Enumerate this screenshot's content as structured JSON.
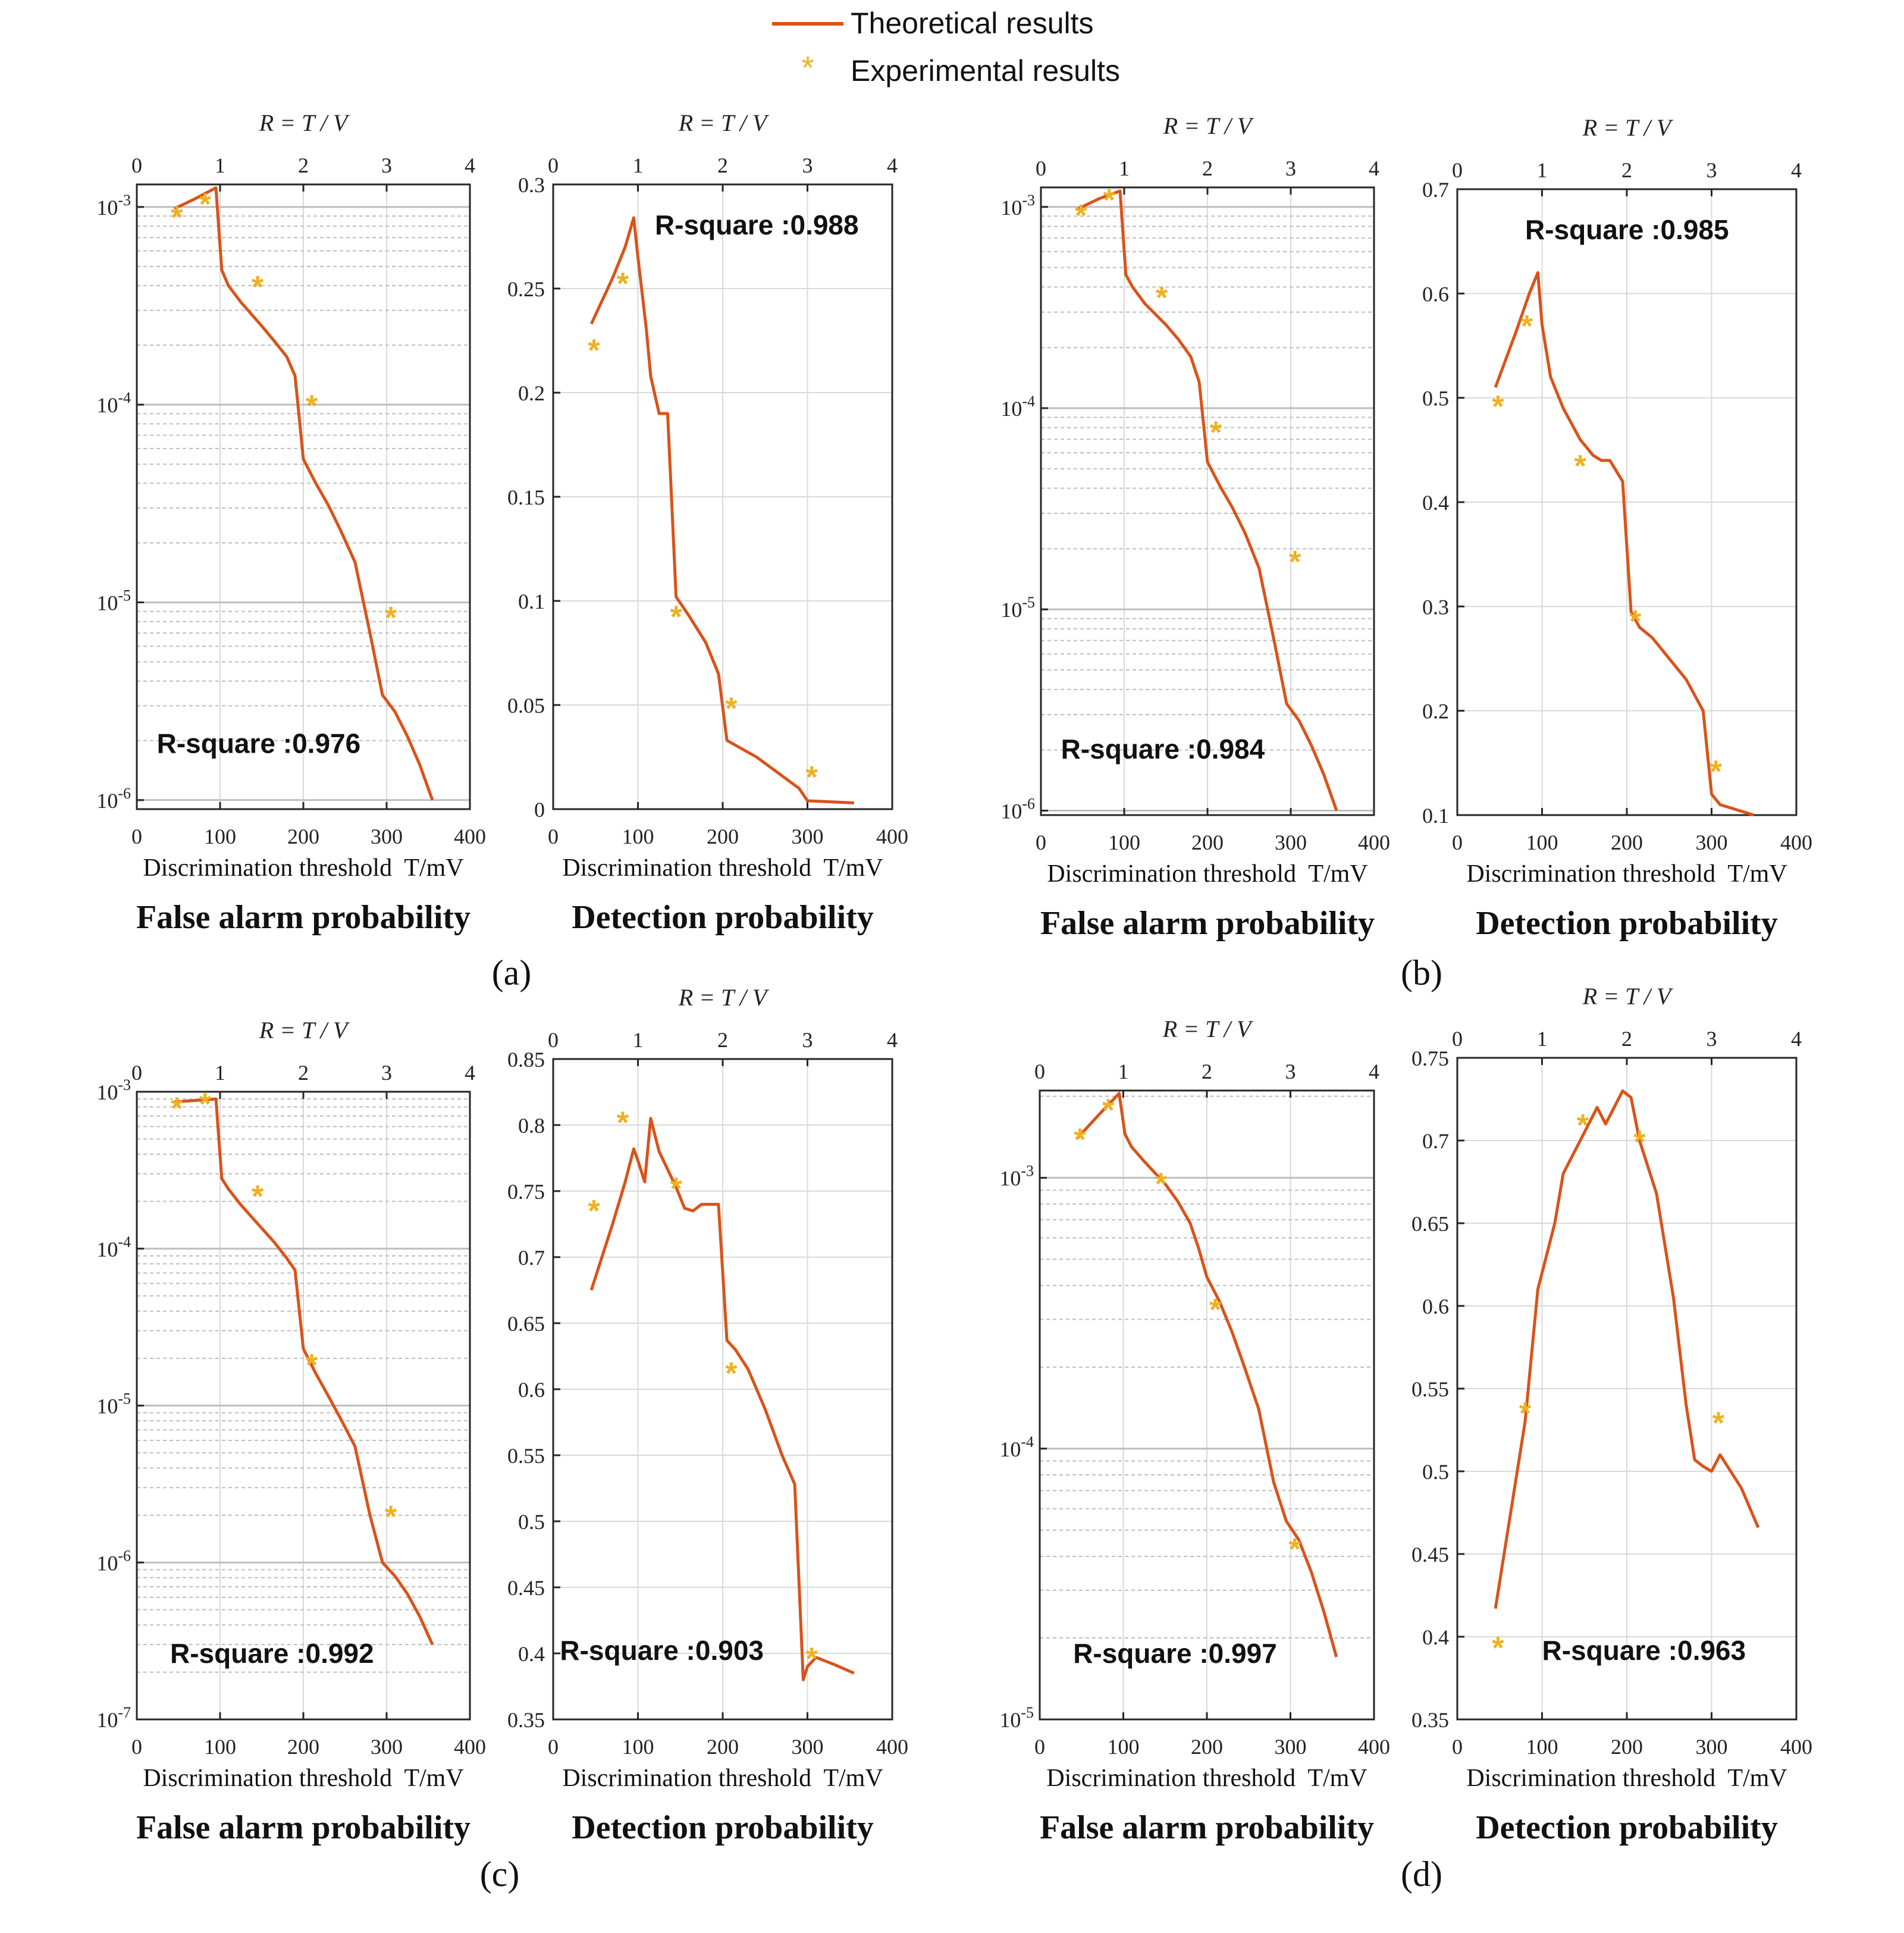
{
  "colors": {
    "theory": "#d95319",
    "experiment": "#edb120",
    "grid_major": "#d9d9d9",
    "grid_minor": "#bdbdbd",
    "axis": "#262626"
  },
  "legend": {
    "theory_label": "Theoretical results",
    "experiment_label": "Experimental results",
    "position": "top-center"
  },
  "chart_data": [
    {
      "type": "line",
      "panel": "(a)",
      "side": "left",
      "title": "False alarm probability",
      "xlabel": "Discrimination threshold  T/mV",
      "top_xlabel": "R = T / V",
      "yscale": "log",
      "ylim": [
        9e-07,
        0.0013
      ],
      "xlim": [
        0,
        400
      ],
      "top_xlim": [
        0,
        4
      ],
      "xticks": [
        0,
        100,
        200,
        300,
        400
      ],
      "top_xticks": [
        0,
        1,
        2,
        3,
        4
      ],
      "yticks": [
        1e-06,
        1e-05,
        0.0001,
        0.001
      ],
      "yticklabels": [
        "10",
        "10",
        "10",
        "10"
      ],
      "ytickexp": [
        "-6",
        "-5",
        "-4",
        "-3"
      ],
      "r_square": "R-square :0.976",
      "rsq_pos": [
        0.06,
        0.09
      ],
      "grid": true,
      "theory": {
        "name": "Theoretical results",
        "x": [
          45,
          70,
          95,
          102,
          110,
          125,
          150,
          165,
          180,
          190,
          200,
          215,
          230,
          245,
          262,
          280,
          295,
          310,
          325,
          340,
          355
        ],
        "y": [
          0.00098,
          0.0011,
          0.00125,
          0.00048,
          0.0004,
          0.00033,
          0.00025,
          0.00021,
          0.000175,
          0.00014,
          5.3e-05,
          4e-05,
          3.1e-05,
          2.3e-05,
          1.6e-05,
          7e-06,
          3.4e-06,
          2.8e-06,
          2.1e-06,
          1.5e-06,
          1e-06
        ]
      },
      "experiment": {
        "name": "Experimental results",
        "x": [
          48,
          82,
          145,
          210,
          305
        ],
        "y": [
          0.0009,
          0.00105,
          0.0004,
          0.0001,
          8.5e-06
        ]
      }
    },
    {
      "type": "line",
      "panel": "(a)",
      "side": "right",
      "title": "Detection probability",
      "xlabel": "Discrimination threshold  T/mV",
      "top_xlabel": "R = T / V",
      "yscale": "linear",
      "ylim": [
        0,
        0.3
      ],
      "xlim": [
        0,
        400
      ],
      "top_xlim": [
        0,
        4
      ],
      "xticks": [
        0,
        100,
        200,
        300,
        400
      ],
      "top_xticks": [
        0,
        1,
        2,
        3,
        4
      ],
      "yticks": [
        0,
        0.05,
        0.1,
        0.15,
        0.2,
        0.25,
        0.3
      ],
      "yticklabels": [
        "0",
        "0.05",
        "0.1",
        "0.15",
        "0.2",
        "0.25",
        "0.3"
      ],
      "r_square": "R-square :0.988",
      "rsq_pos": [
        0.3,
        0.92
      ],
      "grid": true,
      "theory": {
        "name": "Theoretical results",
        "x": [
          45,
          70,
          85,
          95,
          100,
          110,
          115,
          125,
          135,
          145,
          160,
          180,
          195,
          205,
          240,
          270,
          290,
          300,
          355
        ],
        "y": [
          0.233,
          0.255,
          0.27,
          0.284,
          0.265,
          0.23,
          0.208,
          0.19,
          0.19,
          0.102,
          0.093,
          0.08,
          0.065,
          0.033,
          0.025,
          0.016,
          0.01,
          0.004,
          0.003
        ]
      },
      "experiment": {
        "name": "Experimental results",
        "x": [
          48,
          82,
          145,
          210,
          305
        ],
        "y": [
          0.221,
          0.253,
          0.093,
          0.049,
          0.016
        ]
      }
    },
    {
      "type": "line",
      "panel": "(b)",
      "side": "left",
      "title": "False alarm probability",
      "xlabel": "Discrimination threshold  T/mV",
      "top_xlabel": "R = T / V",
      "yscale": "log",
      "ylim": [
        9.5e-07,
        0.00125
      ],
      "xlim": [
        0,
        400
      ],
      "top_xlim": [
        0,
        4
      ],
      "xticks": [
        0,
        100,
        200,
        300,
        400
      ],
      "top_xticks": [
        0,
        1,
        2,
        3,
        4
      ],
      "yticks": [
        1e-06,
        1e-05,
        0.0001,
        0.001
      ],
      "yticklabels": [
        "10",
        "10",
        "10",
        "10"
      ],
      "ytickexp": [
        "-6",
        "-5",
        "-4",
        "-3"
      ],
      "r_square": "R-square :0.984",
      "rsq_pos": [
        0.06,
        0.09
      ],
      "grid": true,
      "theory": {
        "name": "Theoretical results",
        "x": [
          45,
          70,
          95,
          102,
          110,
          125,
          150,
          165,
          180,
          190,
          200,
          215,
          230,
          245,
          262,
          280,
          295,
          310,
          325,
          340,
          355
        ],
        "y": [
          0.00098,
          0.0011,
          0.0012,
          0.00046,
          0.0004,
          0.00033,
          0.00026,
          0.00022,
          0.00018,
          0.000135,
          5.4e-05,
          4.1e-05,
          3.2e-05,
          2.4e-05,
          1.6e-05,
          7e-06,
          3.4e-06,
          2.8e-06,
          2.1e-06,
          1.5e-06,
          1e-06
        ]
      },
      "experiment": {
        "name": "Experimental results",
        "x": [
          48,
          82,
          145,
          210,
          305
        ],
        "y": [
          0.00092,
          0.0011,
          0.00036,
          7.7e-05,
          1.75e-05
        ]
      }
    },
    {
      "type": "line",
      "panel": "(b)",
      "side": "right",
      "title": "Detection probability",
      "xlabel": "Discrimination threshold  T/mV",
      "top_xlabel": "R = T / V",
      "yscale": "linear",
      "ylim": [
        0.1,
        0.7
      ],
      "xlim": [
        0,
        400
      ],
      "top_xlim": [
        0,
        4
      ],
      "xticks": [
        0,
        100,
        200,
        300,
        400
      ],
      "top_xticks": [
        0,
        1,
        2,
        3,
        4
      ],
      "yticks": [
        0.1,
        0.2,
        0.3,
        0.4,
        0.5,
        0.6,
        0.7
      ],
      "yticklabels": [
        "0.1",
        "0.2",
        "0.3",
        "0.4",
        "0.5",
        "0.6",
        "0.7"
      ],
      "r_square": "R-square :0.985",
      "rsq_pos": [
        0.2,
        0.92
      ],
      "grid": true,
      "theory": {
        "name": "Theoretical results",
        "x": [
          45,
          70,
          85,
          95,
          100,
          110,
          125,
          145,
          160,
          170,
          180,
          195,
          205,
          215,
          230,
          250,
          270,
          290,
          300,
          310,
          350
        ],
        "y": [
          0.51,
          0.565,
          0.6,
          0.62,
          0.57,
          0.52,
          0.49,
          0.46,
          0.445,
          0.44,
          0.44,
          0.42,
          0.295,
          0.28,
          0.27,
          0.25,
          0.23,
          0.2,
          0.12,
          0.11,
          0.1
        ]
      },
      "experiment": {
        "name": "Experimental results",
        "x": [
          48,
          82,
          145,
          210,
          305
        ],
        "y": [
          0.493,
          0.57,
          0.436,
          0.287,
          0.143
        ]
      }
    },
    {
      "type": "line",
      "panel": "(c)",
      "side": "left",
      "title": "False alarm probability",
      "xlabel": "Discrimination threshold  T/mV",
      "top_xlabel": "R = T / V",
      "yscale": "log",
      "ylim": [
        1e-07,
        0.001
      ],
      "xlim": [
        0,
        400
      ],
      "top_xlim": [
        0,
        4
      ],
      "xticks": [
        0,
        100,
        200,
        300,
        400
      ],
      "top_xticks": [
        0,
        1,
        2,
        3,
        4
      ],
      "yticks": [
        1e-07,
        1e-06,
        1e-05,
        0.0001,
        0.001
      ],
      "yticklabels": [
        "10",
        "10",
        "10",
        "10",
        "10"
      ],
      "ytickexp": [
        "-7",
        "-6",
        "-5",
        "-4",
        "-3"
      ],
      "r_square": "R-square :0.992",
      "rsq_pos": [
        0.1,
        0.09
      ],
      "grid": true,
      "theory": {
        "name": "Theoretical results",
        "x": [
          45,
          70,
          95,
          102,
          110,
          125,
          150,
          165,
          180,
          190,
          200,
          215,
          230,
          245,
          262,
          280,
          295,
          310,
          325,
          340,
          355
        ],
        "y": [
          0.00086,
          0.00088,
          0.0009,
          0.00028,
          0.00024,
          0.00019,
          0.000135,
          0.00011,
          8.7e-05,
          7.3e-05,
          2.3e-05,
          1.6e-05,
          1.15e-05,
          8.2e-06,
          5.5e-06,
          2e-06,
          1e-06,
          8.2e-07,
          6.3e-07,
          4.5e-07,
          3e-07
        ]
      },
      "experiment": {
        "name": "Experimental results",
        "x": [
          48,
          82,
          145,
          210,
          305
        ],
        "y": [
          0.0008,
          0.00085,
          0.00022,
          1.85e-05,
          2e-06
        ]
      }
    },
    {
      "type": "line",
      "panel": "(c)",
      "side": "right",
      "title": "Detection probability",
      "xlabel": "Discrimination threshold  T/mV",
      "top_xlabel": "R = T / V",
      "yscale": "linear",
      "ylim": [
        0.35,
        0.85
      ],
      "xlim": [
        0,
        400
      ],
      "top_xlim": [
        0,
        4
      ],
      "xticks": [
        0,
        100,
        200,
        300,
        400
      ],
      "top_xticks": [
        0,
        1,
        2,
        3,
        4
      ],
      "yticks": [
        0.35,
        0.4,
        0.45,
        0.5,
        0.55,
        0.6,
        0.65,
        0.7,
        0.75,
        0.8,
        0.85
      ],
      "yticklabels": [
        "0.35",
        "0.4",
        "0.45",
        "0.5",
        "0.55",
        "0.6",
        "0.65",
        "0.7",
        "0.75",
        "0.8",
        "0.85"
      ],
      "r_square": "R-square :0.903",
      "rsq_pos": [
        0.02,
        0.09
      ],
      "grid": true,
      "theory": {
        "name": "Theoretical results",
        "x": [
          45,
          70,
          85,
          95,
          100,
          108,
          115,
          125,
          145,
          155,
          165,
          175,
          195,
          205,
          215,
          230,
          250,
          270,
          285,
          295,
          300,
          310,
          330,
          355
        ],
        "y": [
          0.675,
          0.725,
          0.757,
          0.782,
          0.773,
          0.757,
          0.805,
          0.78,
          0.753,
          0.737,
          0.735,
          0.74,
          0.74,
          0.637,
          0.63,
          0.615,
          0.585,
          0.55,
          0.528,
          0.38,
          0.39,
          0.397,
          0.392,
          0.385
        ]
      },
      "experiment": {
        "name": "Experimental results",
        "x": [
          48,
          82,
          145,
          210,
          305
        ],
        "y": [
          0.736,
          0.803,
          0.753,
          0.613,
          0.397
        ]
      }
    },
    {
      "type": "line",
      "panel": "(d)",
      "side": "left",
      "title": "False alarm probability",
      "xlabel": "Discrimination threshold  T/mV",
      "top_xlabel": "R = T / V",
      "yscale": "log",
      "ylim": [
        1e-05,
        0.0021
      ],
      "xlim": [
        0,
        400
      ],
      "top_xlim": [
        0,
        4
      ],
      "xticks": [
        0,
        100,
        200,
        300,
        400
      ],
      "top_xticks": [
        0,
        1,
        2,
        3,
        4
      ],
      "yticks": [
        1e-05,
        0.0001,
        0.001
      ],
      "yticklabels": [
        "10",
        "10",
        "10"
      ],
      "ytickexp": [
        "-5",
        "-4",
        "-3"
      ],
      "r_square": "R-square :0.997",
      "rsq_pos": [
        0.1,
        0.09
      ],
      "grid": true,
      "theory": {
        "name": "Theoretical results",
        "x": [
          45,
          70,
          95,
          102,
          110,
          125,
          150,
          165,
          180,
          190,
          200,
          215,
          230,
          245,
          262,
          280,
          295,
          310,
          325,
          340,
          355
        ],
        "y": [
          0.0014,
          0.0017,
          0.00205,
          0.00145,
          0.0013,
          0.00115,
          0.00095,
          0.00082,
          0.00068,
          0.00055,
          0.00043,
          0.00035,
          0.00027,
          0.0002,
          0.00014,
          7.5e-05,
          5.4e-05,
          4.6e-05,
          3.5e-05,
          2.5e-05,
          1.7e-05
        ]
      },
      "experiment": {
        "name": "Experimental results",
        "x": [
          48,
          82,
          145,
          210,
          305
        ],
        "y": [
          0.0014,
          0.0018,
          0.00096,
          0.00033,
          4.3e-05
        ]
      }
    },
    {
      "type": "line",
      "panel": "(d)",
      "side": "right",
      "title": "Detection probability",
      "xlabel": "Discrimination threshold  T/mV",
      "top_xlabel": "R = T / V",
      "yscale": "linear",
      "ylim": [
        0.35,
        0.75
      ],
      "xlim": [
        0,
        400
      ],
      "top_xlim": [
        0,
        4
      ],
      "xticks": [
        0,
        100,
        200,
        300,
        400
      ],
      "top_xticks": [
        0,
        1,
        2,
        3,
        4
      ],
      "yticks": [
        0.35,
        0.4,
        0.45,
        0.5,
        0.55,
        0.6,
        0.65,
        0.7,
        0.75
      ],
      "yticklabels": [
        "0.35",
        "0.4",
        "0.45",
        "0.5",
        "0.55",
        "0.6",
        "0.65",
        "0.7",
        "0.75"
      ],
      "r_square": "R-square :0.963",
      "rsq_pos": [
        0.25,
        0.09
      ],
      "legend_star_pos": [
        0.12,
        0.11
      ],
      "grid": true,
      "theory": {
        "name": "Theoretical results",
        "x": [
          45,
          80,
          95,
          115,
          125,
          150,
          165,
          175,
          195,
          205,
          215,
          235,
          255,
          270,
          280,
          290,
          300,
          310,
          335,
          355
        ],
        "y": [
          0.417,
          0.53,
          0.61,
          0.65,
          0.68,
          0.705,
          0.72,
          0.71,
          0.73,
          0.726,
          0.7,
          0.668,
          0.605,
          0.54,
          0.507,
          0.503,
          0.5,
          0.51,
          0.49,
          0.466
        ]
      },
      "experiment": {
        "name": "Experimental results",
        "x": [
          80,
          148,
          215,
          308
        ],
        "y": [
          0.536,
          0.71,
          0.7,
          0.53
        ]
      }
    }
  ],
  "panel_labels": [
    "(a)",
    "(b)",
    "(c)",
    "(d)"
  ]
}
